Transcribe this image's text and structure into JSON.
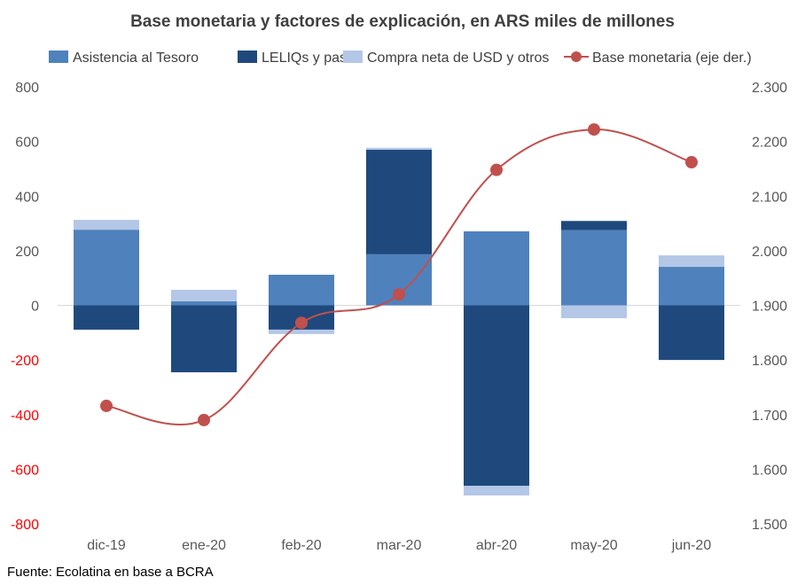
{
  "chart_data": {
    "type": "bar",
    "title": "Base monetaria y factores de explicación, en ARS miles de millones",
    "source": "Fuente: Ecolatina en base a BCRA",
    "categories": [
      "dic-19",
      "ene-20",
      "feb-20",
      "mar-20",
      "abr-20",
      "may-20",
      "jun-20"
    ],
    "ylim": [
      -800,
      800
    ],
    "yticks": [
      800,
      600,
      400,
      200,
      0,
      -200,
      -400,
      -600,
      -800
    ],
    "ytick_labels": [
      "800",
      "600",
      "400",
      "200",
      "0",
      "-200",
      "-400",
      "-600",
      "-800"
    ],
    "y2lim": [
      1500,
      2300
    ],
    "y2ticks": [
      2300,
      2200,
      2100,
      2000,
      1900,
      1800,
      1700,
      1600,
      1500
    ],
    "y2tick_labels": [
      "2.300",
      "2.200",
      "2.100",
      "2.000",
      "1.900",
      "1.800",
      "1.700",
      "1.600",
      "1.500"
    ],
    "grid": false,
    "legend_position": "top",
    "series": [
      {
        "name": "Asistencia al Tesoro",
        "type": "stacked-bar",
        "color": "#4F81BD",
        "values": [
          277,
          15,
          112,
          187,
          271,
          276,
          141
        ]
      },
      {
        "name": "LELIQs y pases",
        "type": "stacked-bar",
        "color": "#1F497D",
        "values": [
          -89,
          -245,
          -89,
          383,
          -661,
          33,
          -200
        ]
      },
      {
        "name": "Compra neta de USD y otros",
        "type": "stacked-bar",
        "color": "#B4C7E7",
        "values": [
          36,
          42,
          -16,
          7,
          -35,
          -47,
          42
        ]
      },
      {
        "name": "Base monetaria (eje der.)",
        "type": "line",
        "axis": "right",
        "color": "#C0504D",
        "values": [
          1716,
          1690,
          1868,
          1920,
          2148,
          2222,
          2162
        ]
      }
    ],
    "negative_tick_color": "#FF0000"
  }
}
